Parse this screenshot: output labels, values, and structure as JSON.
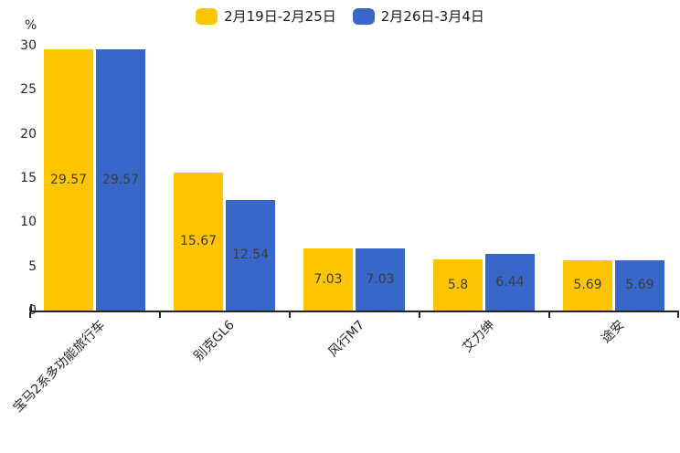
{
  "chart_data": {
    "type": "bar",
    "title": "",
    "categories": [
      "宝马2系多功能旅行车",
      "别克GL6",
      "风行M7",
      "艾力绅",
      "途安"
    ],
    "series": [
      {
        "name": "2月19日-2月25日",
        "color": "#FDC500",
        "values": [
          29.57,
          15.67,
          7.03,
          5.8,
          5.69
        ],
        "labels": [
          "29.57",
          "15.67",
          "7.03",
          "5.8",
          "5.69"
        ]
      },
      {
        "name": "2月26日-3月4日",
        "color": "#3867C9",
        "values": [
          29.57,
          12.54,
          7.03,
          6.44,
          5.69
        ],
        "labels": [
          "29.57",
          "12.54",
          "7.03",
          "6.44",
          "5.69"
        ]
      }
    ],
    "ylabel": "%",
    "yticks": [
      0,
      5,
      10,
      15,
      20,
      25,
      30
    ],
    "ylim": [
      0,
      30
    ],
    "grid": false,
    "legend_position": "top-center",
    "value_labels_inside_bars": true,
    "axis_color": "#262626",
    "value_label_color": "#3d3d3d"
  }
}
